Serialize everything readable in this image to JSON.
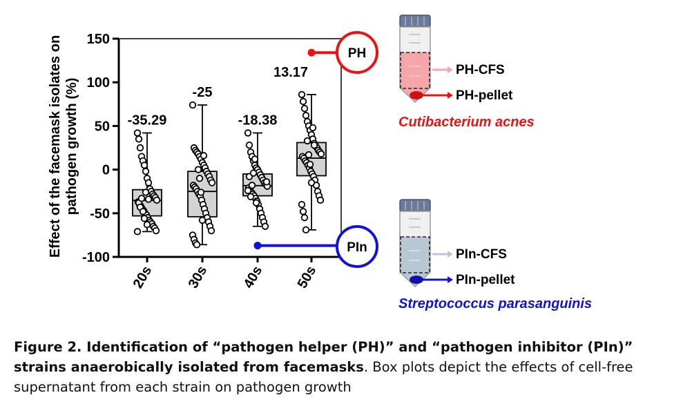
{
  "chart_data": {
    "type": "box",
    "ylabel": "Effect of the facemask isolates on pathogen growth (%)",
    "ylim": [
      -100,
      150
    ],
    "yticks": [
      150,
      100,
      50,
      0,
      -50,
      -100
    ],
    "categories": [
      "20s",
      "30s",
      "40s",
      "50s"
    ],
    "series": [
      {
        "category": "20s",
        "median": -35.29,
        "median_label": "-35.29",
        "q1": -53,
        "q3": -23,
        "min": -71,
        "max": 42,
        "points": [
          42,
          35,
          25,
          15,
          10,
          5,
          -2,
          -10,
          -15,
          -22,
          -25,
          -28,
          -30,
          -32,
          -35,
          -37,
          -40,
          -42,
          -45,
          -47,
          -50,
          -52,
          -55,
          -58,
          -60,
          -62,
          -65,
          -67,
          -70,
          -71,
          -38,
          -43,
          -33,
          -48,
          -56,
          -26,
          -63,
          -34
        ]
      },
      {
        "category": "30s",
        "median": -25,
        "median_label": "-25",
        "q1": -54,
        "q3": -2,
        "min": -86,
        "max": 74,
        "points": [
          74,
          25,
          22,
          20,
          18,
          15,
          12,
          8,
          5,
          2,
          -2,
          -5,
          -8,
          -12,
          -15,
          -18,
          -20,
          -22,
          -25,
          -28,
          -30,
          -35,
          -40,
          -45,
          -50,
          -55,
          -60,
          -65,
          -70,
          -75,
          -80,
          -84,
          -86,
          0,
          -10,
          -26,
          -58,
          16
        ]
      },
      {
        "category": "40s",
        "median": -18.38,
        "median_label": "-18.38",
        "q1": -30,
        "q3": -5,
        "min": -65,
        "max": 42,
        "points": [
          42,
          28,
          20,
          15,
          10,
          5,
          2,
          0,
          -3,
          -6,
          -9,
          -12,
          -15,
          -17,
          -19,
          -21,
          -23,
          -26,
          -28,
          -30,
          -33,
          -36,
          -40,
          -45,
          -50,
          -55,
          -60,
          -65,
          -14,
          -24,
          -8,
          -31,
          -18,
          -4,
          12,
          -38
        ]
      },
      {
        "category": "50s",
        "median": 13.17,
        "median_label": "13.17",
        "q1": -7,
        "q3": 31,
        "min": -69,
        "max": 86,
        "points": [
          86,
          78,
          70,
          62,
          55,
          50,
          45,
          40,
          35,
          30,
          27,
          25,
          22,
          20,
          18,
          15,
          13,
          10,
          8,
          5,
          2,
          -2,
          -5,
          -8,
          -12,
          -18,
          -25,
          -30,
          -35,
          -40,
          -48,
          -55,
          -69,
          33,
          17,
          6,
          -15,
          48,
          28
        ]
      }
    ],
    "highlights": [
      {
        "tag": "PH",
        "value": 134,
        "color": "#ee1111"
      },
      {
        "tag": "PIn",
        "value": -87,
        "color": "#1111dd"
      }
    ]
  },
  "legend": {
    "ph": {
      "cfs": "PH-CFS",
      "pellet": "PH-pellet",
      "species": "Cutibacterium acnes"
    },
    "pin": {
      "cfs": "PIn-CFS",
      "pellet": "PIn-pellet",
      "species": "Streptococcus parasanguinis"
    }
  },
  "caption": {
    "bold": "Figure 2. Identification of “pathogen helper (PH)” and “pathogen inhibitor (PIn)” strains anaerobically isolated from facemasks",
    "rest": ". Box plots depict the effects of cell-free supernatant from each strain on pathogen growth"
  },
  "colors": {
    "ph": "#ee1111",
    "pin": "#1111dd",
    "box": "#d3d3d3",
    "ph_fill": "#f5a6a8",
    "pin_fill": "#b9c6d4"
  }
}
